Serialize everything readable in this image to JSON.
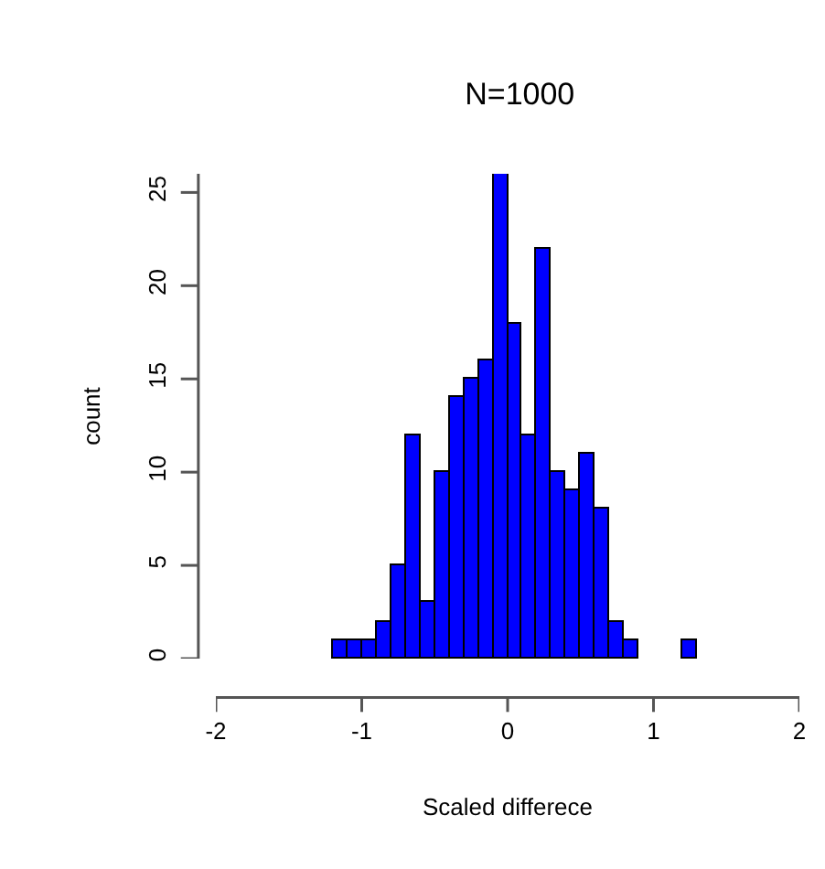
{
  "chart_data": {
    "type": "histogram",
    "title": "N=1000",
    "xlabel": "Scaled differece",
    "ylabel": "count",
    "bins": [
      -2,
      -1.9,
      -1.8,
      -1.7,
      -1.6,
      -1.5,
      -1.4,
      -1.3,
      -1.2,
      -1.1,
      -1,
      -0.9,
      -0.8,
      -0.7,
      -0.6,
      -0.5,
      -0.4,
      -0.3,
      -0.2,
      -0.1,
      0,
      0.1,
      0.2,
      0.3,
      0.4,
      0.5,
      0.6,
      0.7,
      0.8,
      0.9,
      1,
      1.1,
      1.2,
      1.3,
      1.4,
      1.5,
      1.6,
      1.7,
      1.8,
      1.9,
      2
    ],
    "values": [
      0,
      0,
      0,
      0,
      0,
      0,
      0,
      0,
      1,
      1,
      1,
      2,
      5,
      12,
      3,
      10,
      14,
      15,
      16,
      26,
      18,
      12,
      22,
      10,
      9,
      11,
      8,
      2,
      1,
      0,
      0,
      0,
      1,
      0,
      0,
      0,
      0,
      0,
      0,
      0
    ],
    "color": "#0000ff",
    "xlim": [
      -2,
      2
    ],
    "xticks": [
      -2,
      -1,
      0,
      1,
      2
    ],
    "ylim": [
      0,
      26
    ],
    "yticks": [
      0,
      5,
      10,
      15,
      20,
      25
    ],
    "grid": false
  }
}
